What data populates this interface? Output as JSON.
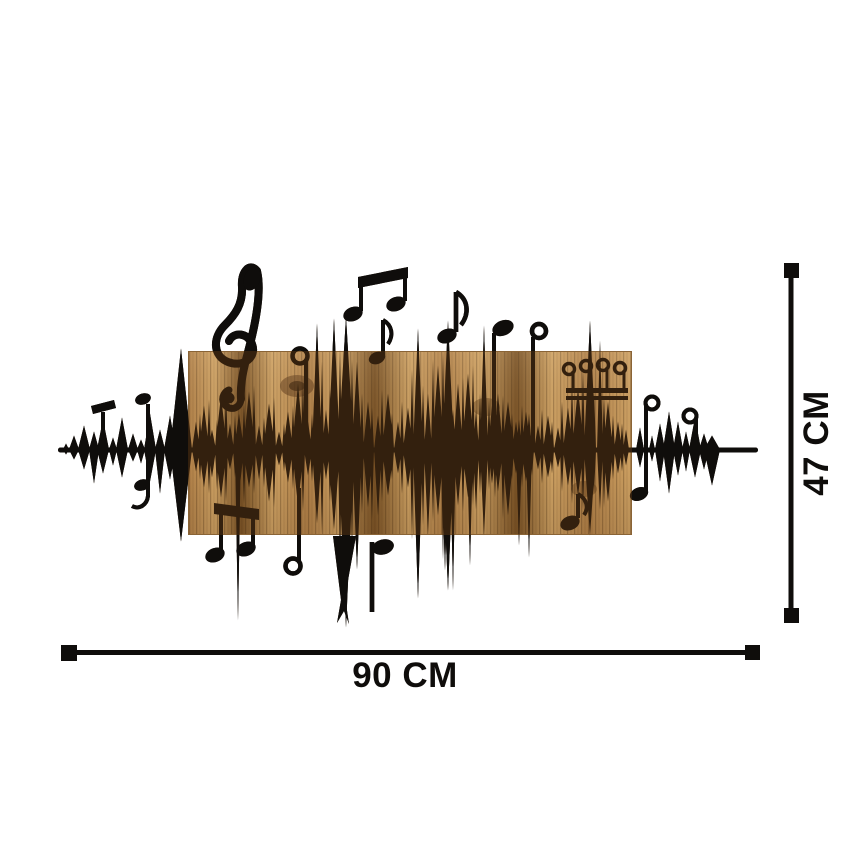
{
  "page": {
    "background": "#ffffff"
  },
  "dimensions": {
    "width": {
      "label": "90 CM",
      "value_cm": 90
    },
    "height": {
      "label": "47 CM",
      "value_cm": 47
    }
  },
  "colors": {
    "metal": "#0f0d0b",
    "engrave": "#33200e",
    "wood_light": "#cfa263",
    "wood_mid": "#b28148",
    "wood_dark": "#7c5426",
    "knot": "#5e3b19",
    "background": "#ffffff"
  },
  "artwork": {
    "icons": [
      "treble-clef",
      "beamed-eighth-notes-top",
      "eighth-note",
      "quarter-note",
      "sixteenth-note-group",
      "beamed-eighth-notes-bottom",
      "soundwave-waveform",
      "wood-plank"
    ]
  }
}
